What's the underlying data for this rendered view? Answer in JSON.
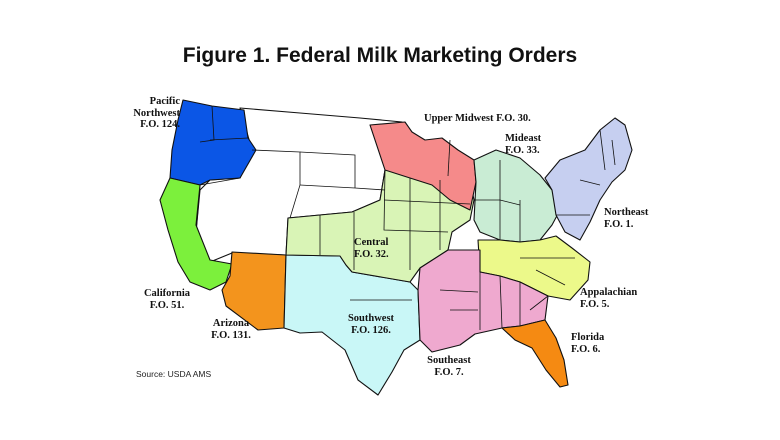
{
  "title": "Figure 1. Federal Milk Marketing Orders",
  "source": "Source: USDA AMS",
  "colors": {
    "pacific_northwest": "#0b56e6",
    "california": "#7cf03c",
    "arizona": "#f3941d",
    "southwest": "#c9f7f7",
    "central": "#d9f4b6",
    "upper_midwest": "#f58a8a",
    "mideast": "#c9ecd4",
    "northeast": "#c6cff0",
    "appalachian": "#ecf98a",
    "southeast": "#efa9cf",
    "florida": "#f58a12",
    "unregulated": "#ffffff",
    "border": "#111111"
  },
  "regions": [
    {
      "key": "pacific_northwest",
      "lines": [
        "Pacific",
        "Northwest",
        "F.O. 124."
      ]
    },
    {
      "key": "upper_midwest",
      "lines": [
        "Upper Midwest F.O. 30."
      ]
    },
    {
      "key": "mideast",
      "lines": [
        "Mideast",
        "F.O. 33."
      ]
    },
    {
      "key": "northeast",
      "lines": [
        "Northeast",
        "F.O. 1."
      ]
    },
    {
      "key": "central",
      "lines": [
        "Central",
        "F.O. 32."
      ]
    },
    {
      "key": "california",
      "lines": [
        "California",
        "F.O. 51."
      ]
    },
    {
      "key": "appalachian",
      "lines": [
        "Appalachian",
        "F.O. 5."
      ]
    },
    {
      "key": "arizona",
      "lines": [
        "Arizona",
        "F.O. 131."
      ]
    },
    {
      "key": "southwest",
      "lines": [
        "Southwest",
        "F.O. 126."
      ]
    },
    {
      "key": "florida",
      "lines": [
        "Florida",
        "F.O. 6."
      ]
    },
    {
      "key": "southeast",
      "lines": [
        "Southeast",
        "F.O. 7."
      ]
    }
  ]
}
